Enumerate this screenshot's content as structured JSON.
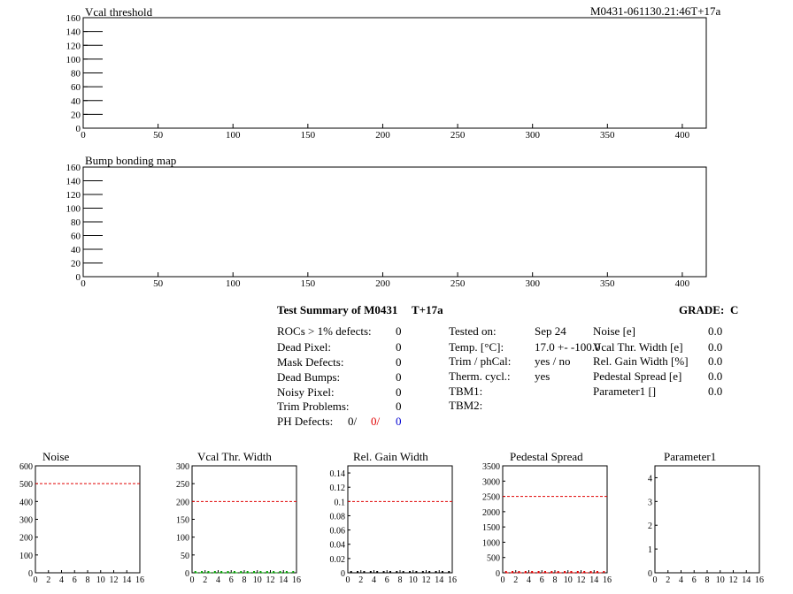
{
  "header": {
    "run_id": "M0431-061130.21:46T+17a"
  },
  "colors": {
    "red": "#e00000",
    "blue": "#0000d0",
    "green": "#00a000",
    "black": "#000000"
  },
  "chart_data": [
    {
      "type": "line",
      "title": "Vcal threshold",
      "xlim": [
        0,
        416
      ],
      "ylim": [
        0,
        160
      ],
      "x_ticks": [
        0,
        50,
        100,
        150,
        200,
        250,
        300,
        350,
        400
      ],
      "y_ticks": [
        0,
        20,
        40,
        60,
        80,
        100,
        120,
        140,
        160
      ],
      "series": []
    },
    {
      "type": "line",
      "title": "Bump bonding map",
      "xlim": [
        0,
        416
      ],
      "ylim": [
        0,
        160
      ],
      "x_ticks": [
        0,
        50,
        100,
        150,
        200,
        250,
        300,
        350,
        400
      ],
      "y_ticks": [
        0,
        20,
        40,
        60,
        80,
        100,
        120,
        140,
        160
      ],
      "series": []
    },
    {
      "type": "line",
      "title": "Noise",
      "xlim": [
        0,
        16
      ],
      "ylim": [
        0,
        600
      ],
      "x_ticks": [
        0,
        2,
        4,
        6,
        8,
        10,
        12,
        14,
        16
      ],
      "y_ticks": [
        0,
        100,
        200,
        300,
        400,
        500,
        600
      ],
      "limit_line": 500,
      "limit_color": "red",
      "series": []
    },
    {
      "type": "line",
      "title": "Vcal Thr. Width",
      "xlim": [
        0,
        16
      ],
      "ylim": [
        0,
        300
      ],
      "x_ticks": [
        0,
        2,
        4,
        6,
        8,
        10,
        12,
        14,
        16
      ],
      "y_ticks": [
        0,
        50,
        100,
        150,
        200,
        250,
        300
      ],
      "limit_line": 200,
      "limit_color": "red",
      "series": [
        {
          "color": "green",
          "values": [
            0,
            0,
            0,
            0,
            0,
            0,
            0,
            0,
            0,
            0,
            0,
            0,
            0,
            0,
            0,
            0
          ]
        }
      ]
    },
    {
      "type": "line",
      "title": "Rel. Gain Width",
      "xlim": [
        0,
        16
      ],
      "ylim": [
        0,
        0.15
      ],
      "x_ticks": [
        0,
        2,
        4,
        6,
        8,
        10,
        12,
        14,
        16
      ],
      "y_ticks": [
        0,
        0.02,
        0.04,
        0.06,
        0.08,
        0.1,
        0.12,
        0.14
      ],
      "limit_line": 0.1,
      "limit_color": "red",
      "series": [
        {
          "color": "black",
          "values": [
            0,
            0,
            0,
            0,
            0,
            0,
            0,
            0,
            0,
            0,
            0,
            0,
            0,
            0,
            0,
            0
          ]
        }
      ]
    },
    {
      "type": "line",
      "title": "Pedestal Spread",
      "xlim": [
        0,
        16
      ],
      "ylim": [
        0,
        3500
      ],
      "x_ticks": [
        0,
        2,
        4,
        6,
        8,
        10,
        12,
        14,
        16
      ],
      "y_ticks": [
        0,
        500,
        1000,
        1500,
        2000,
        2500,
        3000,
        3500
      ],
      "limit_line": 2500,
      "limit_color": "red",
      "series": [
        {
          "color": "red",
          "values": [
            0,
            0,
            0,
            0,
            0,
            0,
            0,
            0,
            0,
            0,
            0,
            0,
            0,
            0,
            0,
            0
          ]
        }
      ]
    },
    {
      "type": "line",
      "title": "Parameter1",
      "xlim": [
        0,
        16
      ],
      "ylim": [
        0,
        4.5
      ],
      "x_ticks": [
        0,
        2,
        4,
        6,
        8,
        10,
        12,
        14,
        16
      ],
      "y_ticks": [
        0,
        1,
        2,
        3,
        4
      ],
      "series": []
    }
  ],
  "summary": {
    "title": "Test Summary of M0431",
    "suffix": "T+17a",
    "grade_label": "GRADE:",
    "grade": "C",
    "defects": [
      {
        "label": "ROCs > 1% defects:",
        "value": "0"
      },
      {
        "label": "Dead Pixel:",
        "value": "0"
      },
      {
        "label": "Mask Defects:",
        "value": "0"
      },
      {
        "label": "Dead Bumps:",
        "value": "0"
      },
      {
        "label": "Noisy Pixel:",
        "value": "0"
      },
      {
        "label": "Trim Problems:",
        "value": "0"
      }
    ],
    "ph_defects": {
      "label": "PH Defects:",
      "v1": "0/",
      "v2": "0/",
      "v3": "0"
    },
    "info": [
      {
        "label": "Tested on:",
        "value": "Sep 24"
      },
      {
        "label": "Temp. [°C]:",
        "value": "17.0 +- -100.0"
      },
      {
        "label": "Trim / phCal:",
        "value": "yes / no"
      },
      {
        "label": "Therm. cycl.:",
        "value": "yes"
      },
      {
        "label": "TBM1:",
        "value": ""
      },
      {
        "label": "TBM2:",
        "value": ""
      }
    ],
    "params": [
      {
        "label": "Noise [e]",
        "value": "0.0"
      },
      {
        "label": "Vcal Thr. Width [e]",
        "value": "0.0"
      },
      {
        "label": "Rel. Gain Width [%]",
        "value": "0.0"
      },
      {
        "label": "Pedestal Spread [e]",
        "value": "0.0"
      },
      {
        "label": "Parameter1 []",
        "value": "0.0"
      }
    ]
  }
}
